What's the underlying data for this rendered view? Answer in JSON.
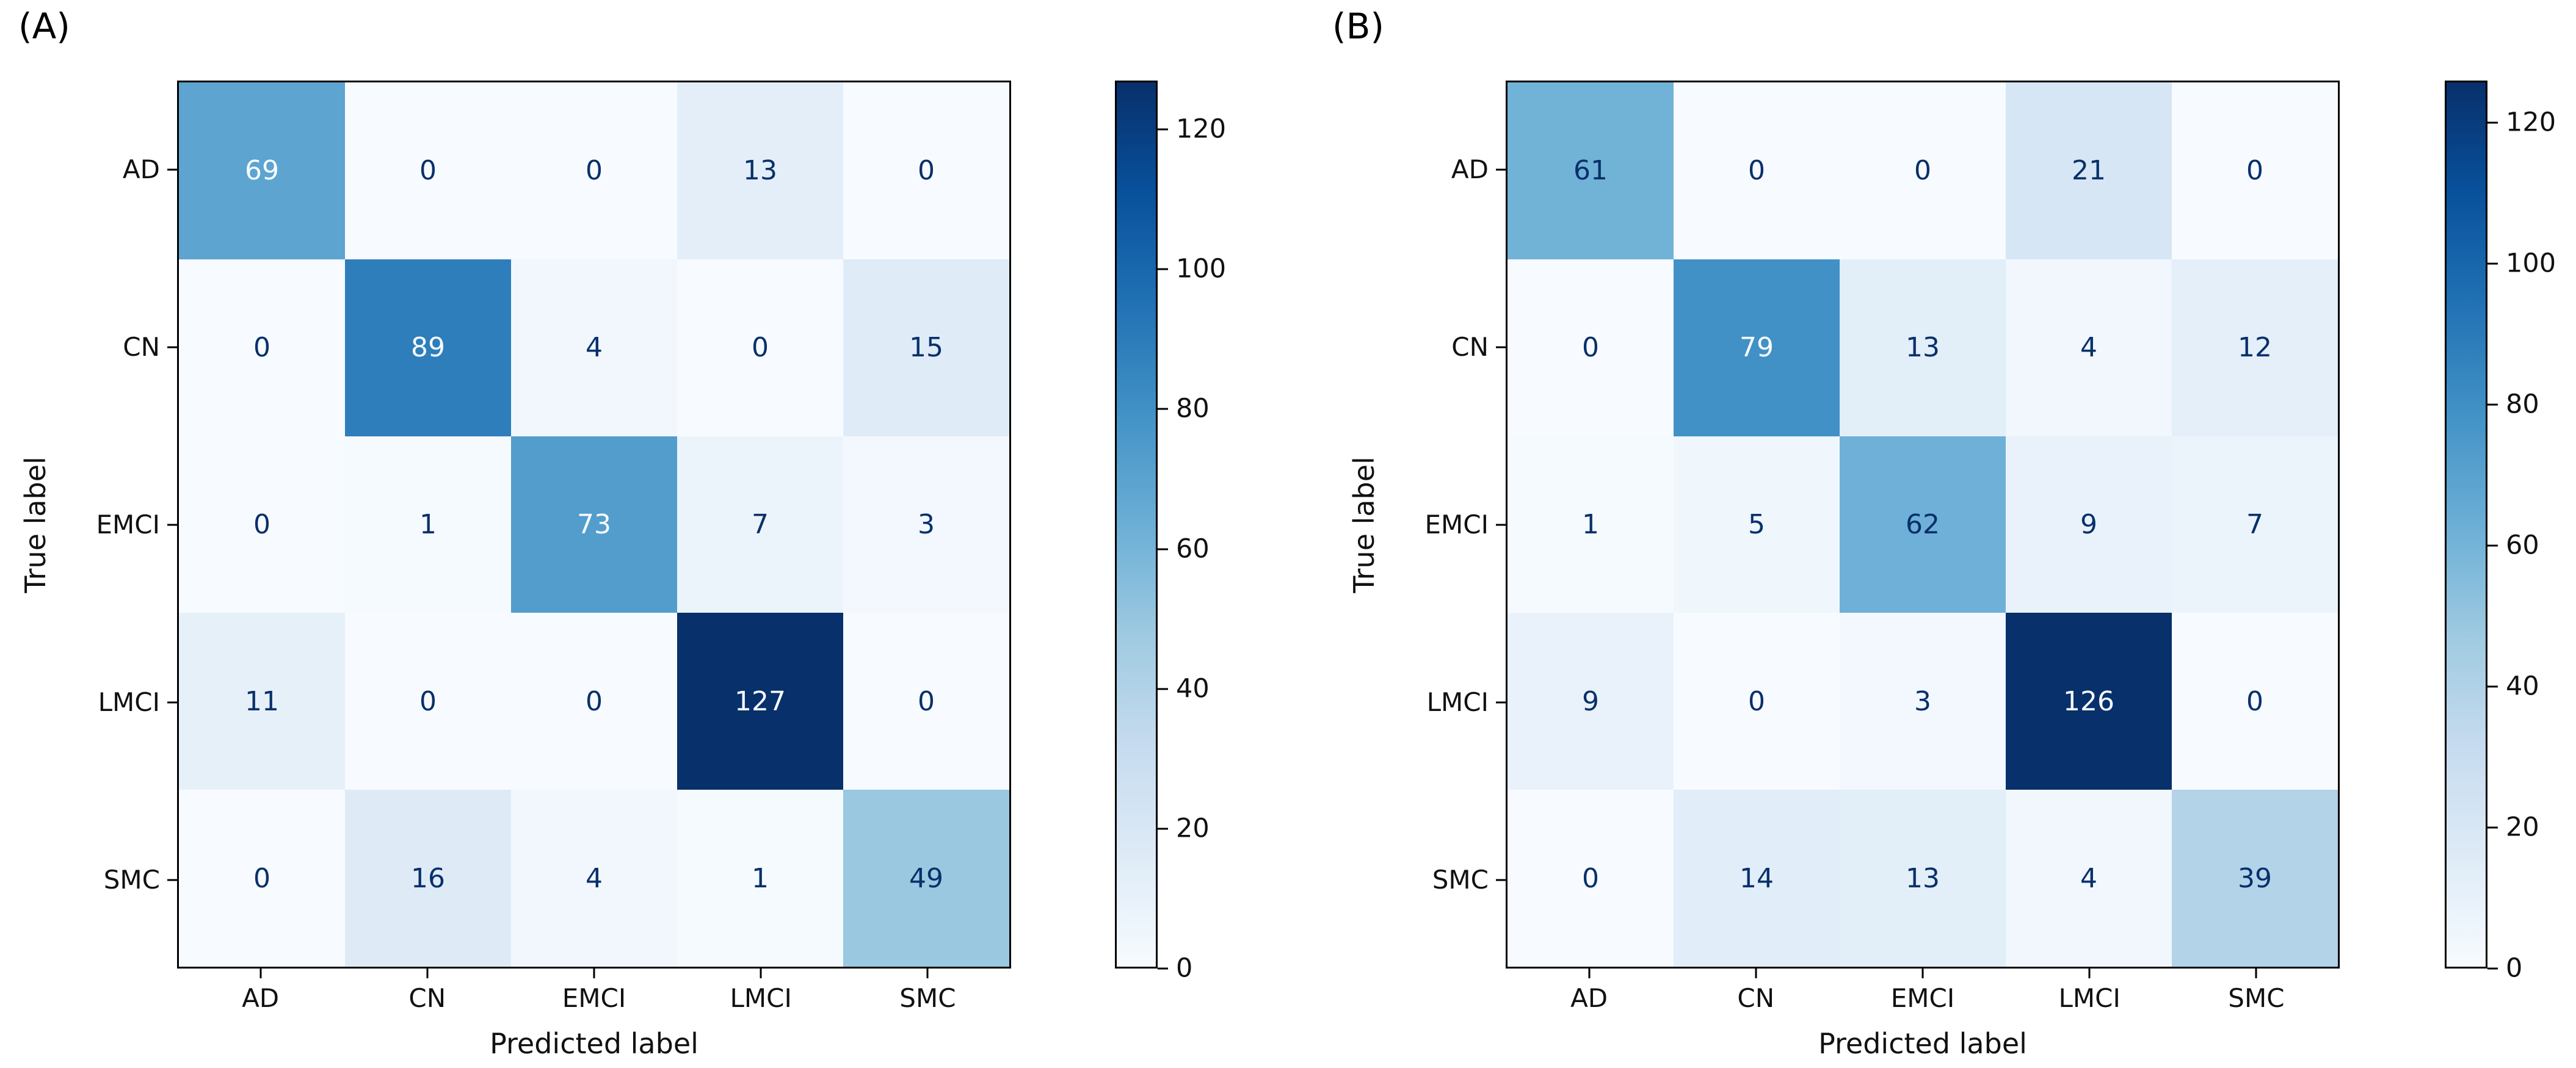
{
  "chart_data": [
    {
      "type": "heatmap",
      "title": "(A)",
      "xlabel": "Predicted label",
      "ylabel": "True label",
      "x_categories": [
        "AD",
        "CN",
        "EMCI",
        "LMCI",
        "SMC"
      ],
      "y_categories": [
        "AD",
        "CN",
        "EMCI",
        "LMCI",
        "SMC"
      ],
      "values": [
        [
          69,
          0,
          0,
          13,
          0
        ],
        [
          0,
          89,
          4,
          0,
          15
        ],
        [
          0,
          1,
          73,
          7,
          3
        ],
        [
          11,
          0,
          0,
          127,
          0
        ],
        [
          0,
          16,
          4,
          1,
          49
        ]
      ],
      "colormap": "Blues",
      "vmin": 0,
      "vmax": 127,
      "colorbar_ticks": [
        0,
        20,
        40,
        60,
        80,
        100,
        120
      ],
      "grid": false,
      "legend_position": "colorbar-right"
    },
    {
      "type": "heatmap",
      "title": "(B)",
      "xlabel": "Predicted label",
      "ylabel": "True label",
      "x_categories": [
        "AD",
        "CN",
        "EMCI",
        "LMCI",
        "SMC"
      ],
      "y_categories": [
        "AD",
        "CN",
        "EMCI",
        "LMCI",
        "SMC"
      ],
      "values": [
        [
          61,
          0,
          0,
          21,
          0
        ],
        [
          0,
          79,
          13,
          4,
          12
        ],
        [
          1,
          5,
          62,
          9,
          7
        ],
        [
          9,
          0,
          3,
          126,
          0
        ],
        [
          0,
          14,
          13,
          4,
          39
        ]
      ],
      "colormap": "Blues",
      "vmin": 0,
      "vmax": 126,
      "colorbar_ticks": [
        0,
        20,
        40,
        60,
        80,
        100,
        120
      ],
      "grid": false,
      "legend_position": "colorbar-right"
    }
  ],
  "colors": {
    "cmap_stops": [
      "#f7fbff",
      "#deebf7",
      "#c6dbef",
      "#9ecae1",
      "#6baed6",
      "#4292c6",
      "#2171b5",
      "#08519c",
      "#08306b"
    ],
    "text_dark": "#08306b",
    "text_light": "#f7fbff",
    "axis": "#000000",
    "background": "#ffffff"
  }
}
